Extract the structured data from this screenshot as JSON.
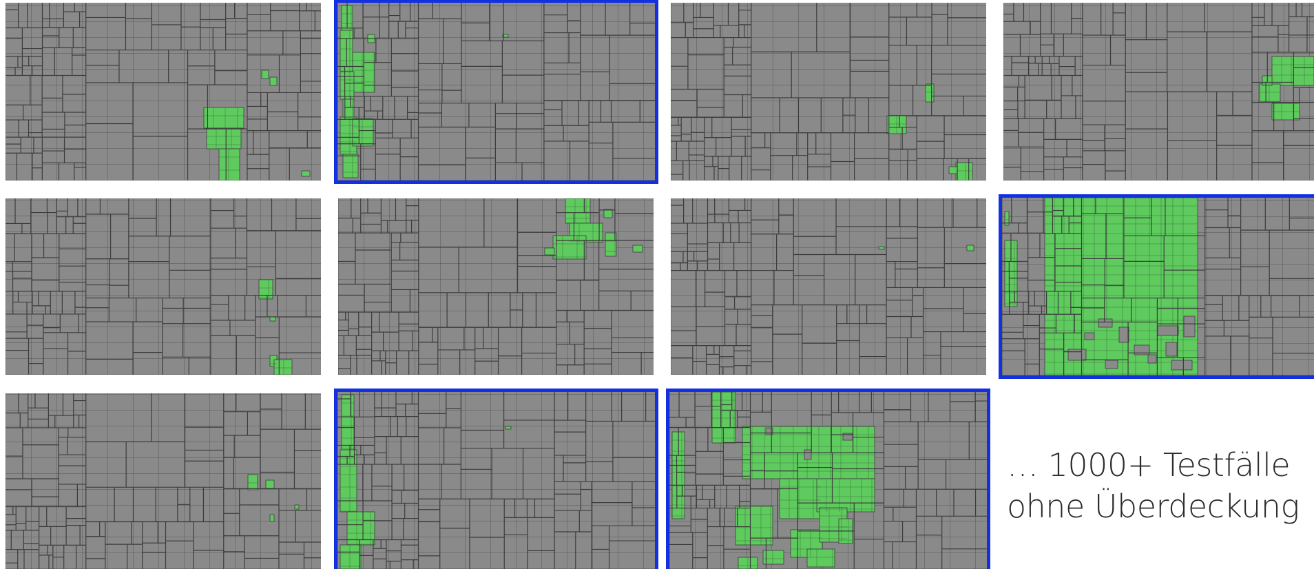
{
  "colors": {
    "background": "#ffffff",
    "treemap_cell": "#8a8a8a",
    "cell_border": "#3c3c3c",
    "covered": "#5fcb5f",
    "selection_frame": "#1230e0"
  },
  "caption": {
    "line1": "… 1000+ Testfälle",
    "line2": "ohne Überdeckung"
  },
  "grid": {
    "rows": 3,
    "columns": 4,
    "visible_tiles": 11
  },
  "tiles": [
    {
      "id": "r1c1",
      "selected": false,
      "coverage": "small"
    },
    {
      "id": "r1c2",
      "selected": true,
      "coverage": "left-strip"
    },
    {
      "id": "r1c3",
      "selected": false,
      "coverage": "small"
    },
    {
      "id": "r1c4",
      "selected": false,
      "coverage": "small"
    },
    {
      "id": "r2c1",
      "selected": false,
      "coverage": "small"
    },
    {
      "id": "r2c2",
      "selected": false,
      "coverage": "small"
    },
    {
      "id": "r2c3",
      "selected": false,
      "coverage": "none"
    },
    {
      "id": "r2c4",
      "selected": true,
      "coverage": "large"
    },
    {
      "id": "r3c1",
      "selected": false,
      "coverage": "small"
    },
    {
      "id": "r3c2",
      "selected": true,
      "coverage": "left-strip"
    },
    {
      "id": "r3c3",
      "selected": true,
      "coverage": "medium"
    }
  ]
}
